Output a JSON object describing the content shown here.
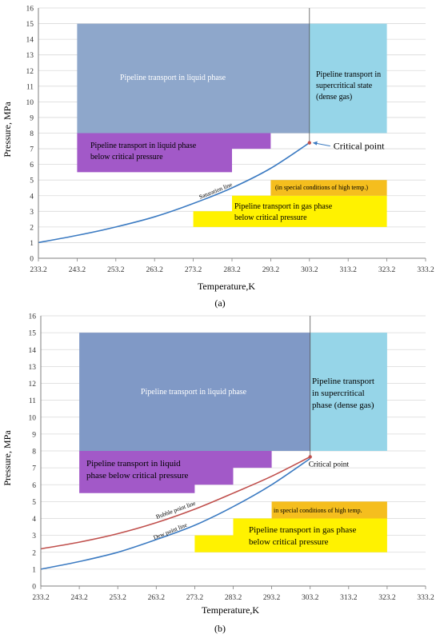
{
  "chart_data": [
    {
      "type": "area",
      "caption": "(a)",
      "xlabel": "Temperature,K",
      "ylabel": "Pressure, MPa",
      "xticks": [
        "233.2",
        "243.2",
        "253.2",
        "263.2",
        "273.2",
        "283.2",
        "293.2",
        "303.2",
        "313.2",
        "323.2",
        "333.2"
      ],
      "yticks": [
        "0",
        "1",
        "2",
        "3",
        "4",
        "5",
        "6",
        "7",
        "8",
        "9",
        "10",
        "11",
        "12",
        "13",
        "14",
        "15",
        "16"
      ],
      "xlim": [
        233.2,
        333.2
      ],
      "ylim": [
        0,
        16
      ],
      "grid": "horizontal",
      "regions": [
        {
          "name": "liquid",
          "label_lines": [
            "Pipeline transport in liquid phase"
          ],
          "color": "#8EA7CB",
          "polygon": [
            [
              243.2,
              8
            ],
            [
              303.2,
              8
            ],
            [
              303.2,
              15
            ],
            [
              243.2,
              15
            ]
          ]
        },
        {
          "name": "supercritical",
          "label_lines": [
            "Pipeline transport in",
            "supercritical state",
            "(dense gas)"
          ],
          "color": "#96D5E8",
          "polygon": [
            [
              303.2,
              8
            ],
            [
              323.2,
              8
            ],
            [
              323.2,
              15
            ],
            [
              303.2,
              15
            ]
          ]
        },
        {
          "name": "liquid-below",
          "label_lines": [
            "Pipeline transport in liquid phase",
            "below critical pressure"
          ],
          "color": "#A259C8",
          "polygon": [
            [
              243.2,
              5.5
            ],
            [
              283.2,
              5.5
            ],
            [
              283.2,
              7
            ],
            [
              293.2,
              7
            ],
            [
              293.2,
              8
            ],
            [
              243.2,
              8
            ]
          ]
        },
        {
          "name": "gas",
          "label_lines": [
            "Pipeline transport in gas phase",
            "below critical pressure"
          ],
          "color": "#FFF200",
          "polygon": [
            [
              273.2,
              2
            ],
            [
              323.2,
              2
            ],
            [
              323.2,
              4
            ],
            [
              283.2,
              4
            ],
            [
              283.2,
              3
            ],
            [
              273.2,
              3
            ]
          ]
        },
        {
          "name": "high-temp",
          "label_lines": [
            "(in special conditions of high temp.)"
          ],
          "color": "#F5BE1E",
          "polygon": [
            [
              293.2,
              4
            ],
            [
              323.2,
              4
            ],
            [
              323.2,
              5
            ],
            [
              293.2,
              5
            ]
          ]
        }
      ],
      "series": [
        {
          "name": "Saturation line",
          "color": "#3C7BC2",
          "x": [
            233.2,
            243.2,
            253.2,
            263.2,
            273.2,
            283.2,
            293.2,
            303.2
          ],
          "y": [
            1.0,
            1.46,
            2.0,
            2.65,
            3.5,
            4.5,
            5.75,
            7.38
          ]
        }
      ],
      "vertical_line_x": 303.2,
      "point": {
        "x": 303.2,
        "y": 7.38,
        "label": "Critical point"
      }
    },
    {
      "type": "area",
      "caption": "(b)",
      "xlabel": "Temperature,K",
      "ylabel": "Pressure, MPa",
      "xticks": [
        "233.2",
        "243.2",
        "253.2",
        "263.2",
        "273.2",
        "283.2",
        "293.2",
        "303.2",
        "313.2",
        "323.2",
        "333.2"
      ],
      "yticks": [
        "0",
        "1",
        "2",
        "3",
        "4",
        "5",
        "6",
        "7",
        "8",
        "9",
        "10",
        "11",
        "12",
        "13",
        "14",
        "15",
        "16"
      ],
      "xlim": [
        233.2,
        333.2
      ],
      "ylim": [
        0,
        16
      ],
      "grid": "horizontal",
      "regions": [
        {
          "name": "liquid",
          "label_lines": [
            "Pipeline transport in liquid phase"
          ],
          "color": "#8099C6",
          "polygon": [
            [
              243.2,
              8
            ],
            [
              303.2,
              8
            ],
            [
              303.2,
              15
            ],
            [
              243.2,
              15
            ]
          ]
        },
        {
          "name": "supercritical",
          "label_lines": [
            "Pipeline transport",
            "in supercritical",
            "phase (dense gas)"
          ],
          "color": "#96D5E8",
          "polygon": [
            [
              303.2,
              8
            ],
            [
              323.2,
              8
            ],
            [
              323.2,
              15
            ],
            [
              303.2,
              15
            ]
          ]
        },
        {
          "name": "liquid-below",
          "label_lines": [
            "Pipeline transport in liquid",
            "phase below critical pressure"
          ],
          "color": "#A259C8",
          "polygon": [
            [
              243.2,
              5.5
            ],
            [
              273.2,
              5.5
            ],
            [
              273.2,
              6
            ],
            [
              283.2,
              6
            ],
            [
              283.2,
              7
            ],
            [
              293.2,
              7
            ],
            [
              293.2,
              8
            ],
            [
              243.2,
              8
            ]
          ]
        },
        {
          "name": "gas",
          "label_lines": [
            "Pipeline transport in gas phase",
            "below critical pressure"
          ],
          "color": "#FFF200",
          "polygon": [
            [
              273.2,
              2
            ],
            [
              323.2,
              2
            ],
            [
              323.2,
              4
            ],
            [
              283.2,
              4
            ],
            [
              283.2,
              3
            ],
            [
              273.2,
              3
            ]
          ]
        },
        {
          "name": "high-temp",
          "label_lines": [
            "in special conditions of high temp."
          ],
          "color": "#F5BE1E",
          "polygon": [
            [
              293.2,
              4
            ],
            [
              323.2,
              4
            ],
            [
              323.2,
              5
            ],
            [
              293.2,
              5
            ]
          ]
        }
      ],
      "series": [
        {
          "name": "Bubble point line",
          "color": "#C0504D",
          "x": [
            233.2,
            243.2,
            253.2,
            263.2,
            273.2,
            283.2,
            293.2,
            303.2
          ],
          "y": [
            2.2,
            2.6,
            3.1,
            3.75,
            4.55,
            5.5,
            6.5,
            7.65
          ]
        },
        {
          "name": "Dew point line",
          "color": "#3C7BC2",
          "x": [
            233.2,
            243.2,
            253.2,
            263.2,
            273.2,
            283.2,
            293.2,
            303.2
          ],
          "y": [
            1.0,
            1.45,
            2.0,
            2.75,
            3.6,
            4.7,
            6.0,
            7.55
          ]
        }
      ],
      "vertical_line_x": 303.2,
      "point": {
        "x": 303.2,
        "y": 7.65,
        "label": "Critical point"
      }
    }
  ]
}
